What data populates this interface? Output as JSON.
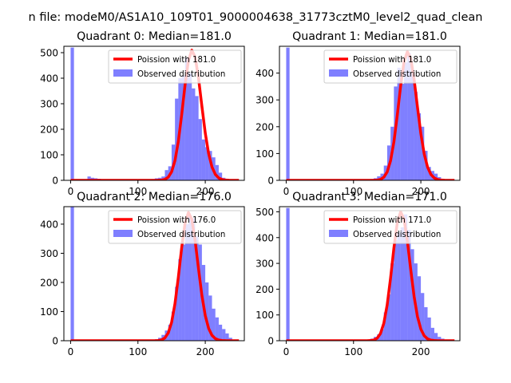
{
  "figure": {
    "suptitle": "n file: modeM0/AS1A10_109T01_9000004638_31773cztM0_level2_quad_clean"
  },
  "colors": {
    "hist": "#0000ff",
    "poisson": "#ff0000",
    "axis": "#000000",
    "legend_border": "#cccccc"
  },
  "chart_data": [
    {
      "type": "bar",
      "title": "Quadrant 0: Median=181.0",
      "xlabel": "",
      "ylabel": "",
      "xlim": [
        -10,
        258
      ],
      "ylim": [
        0,
        525
      ],
      "xticks": [
        0,
        100,
        200
      ],
      "yticks": [
        0,
        100,
        200,
        300,
        400,
        500
      ],
      "legend": {
        "location": "upper right",
        "line_label": "Poission with 181.0",
        "patch_label": "Observed distribution"
      },
      "bin_width": 5,
      "bin_starts": [
        0,
        25,
        30,
        35,
        40,
        45,
        50,
        55,
        60,
        65,
        70,
        75,
        80,
        85,
        90,
        95,
        100,
        105,
        110,
        115,
        120,
        125,
        130,
        135,
        140,
        145,
        150,
        155,
        160,
        165,
        170,
        175,
        180,
        185,
        190,
        195,
        200,
        205,
        210,
        215,
        220,
        225,
        230,
        235,
        240
      ],
      "counts": [
        520,
        15,
        10,
        8,
        6,
        4,
        3,
        3,
        2,
        2,
        2,
        2,
        2,
        2,
        2,
        2,
        2,
        2,
        2,
        4,
        5,
        8,
        10,
        15,
        40,
        55,
        140,
        320,
        400,
        410,
        480,
        420,
        360,
        330,
        240,
        160,
        130,
        115,
        90,
        60,
        30,
        10,
        5,
        2,
        1
      ],
      "poisson_mean": 181.0,
      "poisson_scale": 510
    },
    {
      "type": "bar",
      "title": "Quadrant 1: Median=181.0",
      "xlabel": "",
      "ylabel": "",
      "xlim": [
        -10,
        258
      ],
      "ylim": [
        0,
        500
      ],
      "xticks": [
        0,
        100,
        200
      ],
      "yticks": [
        0,
        100,
        200,
        300,
        400
      ],
      "legend": {
        "location": "upper right",
        "line_label": "Poission with 181.0",
        "patch_label": "Observed distribution"
      },
      "bin_width": 5,
      "bin_starts": [
        0,
        120,
        125,
        130,
        135,
        140,
        145,
        150,
        155,
        160,
        165,
        170,
        175,
        180,
        185,
        190,
        195,
        200,
        205,
        210,
        215,
        220,
        225,
        230,
        235
      ],
      "counts": [
        495,
        3,
        5,
        8,
        15,
        25,
        55,
        130,
        200,
        350,
        420,
        360,
        440,
        475,
        400,
        330,
        250,
        200,
        110,
        50,
        35,
        25,
        12,
        5,
        2
      ],
      "poisson_mean": 181.0,
      "poisson_scale": 480
    },
    {
      "type": "bar",
      "title": "Quadrant 2: Median=176.0",
      "xlabel": "",
      "ylabel": "",
      "xlim": [
        -10,
        258
      ],
      "ylim": [
        0,
        460
      ],
      "xticks": [
        0,
        100,
        200
      ],
      "yticks": [
        0,
        100,
        200,
        300,
        400
      ],
      "legend": {
        "location": "upper right",
        "line_label": "Poission with 176.0",
        "patch_label": "Observed distribution"
      },
      "bin_width": 5,
      "bin_starts": [
        0,
        120,
        125,
        130,
        135,
        140,
        145,
        150,
        155,
        160,
        165,
        170,
        175,
        180,
        185,
        190,
        195,
        200,
        205,
        210,
        215,
        220,
        225,
        230,
        235
      ],
      "counts": [
        460,
        3,
        5,
        10,
        20,
        35,
        55,
        100,
        185,
        280,
        330,
        400,
        430,
        420,
        360,
        330,
        260,
        200,
        155,
        110,
        80,
        55,
        40,
        25,
        10
      ],
      "poisson_mean": 176.0,
      "poisson_scale": 440
    },
    {
      "type": "bar",
      "title": "Quadrant 3: Median=171.0",
      "xlabel": "",
      "ylabel": "",
      "xlim": [
        -10,
        258
      ],
      "ylim": [
        0,
        520
      ],
      "xticks": [
        0,
        100,
        200
      ],
      "yticks": [
        0,
        100,
        200,
        300,
        400,
        500
      ],
      "legend": {
        "location": "upper right",
        "line_label": "Poission with 171.0",
        "patch_label": "Observed distribution"
      },
      "bin_width": 5,
      "bin_starts": [
        0,
        120,
        125,
        130,
        135,
        140,
        145,
        150,
        155,
        160,
        165,
        170,
        175,
        180,
        185,
        190,
        195,
        200,
        205,
        210,
        215,
        220,
        225,
        230,
        235
      ],
      "counts": [
        515,
        3,
        8,
        15,
        25,
        45,
        110,
        180,
        300,
        390,
        420,
        440,
        490,
        430,
        355,
        300,
        250,
        185,
        130,
        90,
        50,
        30,
        15,
        8,
        3
      ],
      "poisson_mean": 171.0,
      "poisson_scale": 500
    }
  ]
}
